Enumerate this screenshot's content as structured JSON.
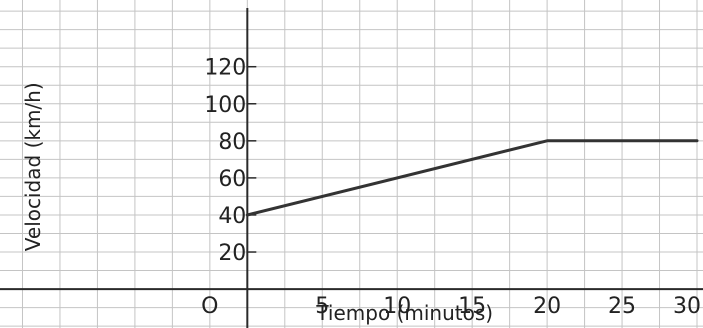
{
  "chart_data": {
    "type": "line",
    "title": "",
    "xlabel": "Tiempo (minutos)",
    "ylabel": "Velocidad (km/h)",
    "origin_label": "O",
    "xlim": [
      -16.5,
      30
    ],
    "ylim": [
      -21,
      156
    ],
    "grid": true,
    "x_ticks": [
      5,
      10,
      15,
      20,
      25,
      30
    ],
    "x_tick_labels": [
      "5",
      "10",
      "15",
      "20",
      "25",
      "30"
    ],
    "y_ticks": [
      20,
      40,
      60,
      80,
      100,
      120
    ],
    "y_tick_labels": [
      "20",
      "40",
      "60",
      "80",
      "100",
      "120"
    ],
    "series": [
      {
        "x": [
          0,
          20,
          30
        ],
        "y": [
          40,
          80,
          80
        ]
      }
    ],
    "colors": {
      "line": "#333333",
      "grid": "#c4c4c4",
      "axis": "#2a2a2a",
      "text": "#222222"
    }
  }
}
